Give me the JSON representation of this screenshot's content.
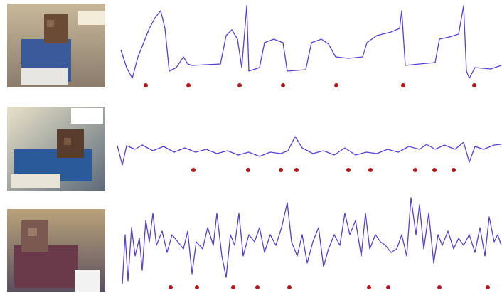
{
  "chart_data": [
    {
      "type": "line",
      "color": "#5a3fd4",
      "event_color": "#b3161b",
      "xlim": [
        0,
        540
      ],
      "ylim": [
        0,
        115
      ],
      "x": [
        5,
        13,
        21,
        29,
        37,
        45,
        53,
        61,
        67,
        73,
        83,
        93,
        99,
        105,
        125,
        145,
        153,
        161,
        169,
        175,
        182,
        185,
        200,
        207,
        220,
        233,
        239,
        265,
        273,
        287,
        297,
        307,
        325,
        345,
        351,
        365,
        385,
        397,
        400,
        405,
        425,
        447,
        453,
        467,
        480,
        487,
        491,
        495,
        503,
        525,
        540
      ],
      "values": [
        50,
        25,
        10,
        40,
        60,
        80,
        95,
        105,
        80,
        20,
        25,
        40,
        30,
        28,
        29,
        30,
        70,
        78,
        65,
        25,
        112,
        20,
        25,
        60,
        65,
        60,
        20,
        22,
        60,
        65,
        58,
        40,
        38,
        40,
        60,
        70,
        75,
        80,
        105,
        28,
        30,
        32,
        65,
        68,
        72,
        112,
        20,
        10,
        25,
        23,
        28
      ],
      "events": [
        40,
        100,
        172,
        233,
        308,
        402,
        502
      ]
    },
    {
      "type": "line",
      "color": "#5a3fd4",
      "event_color": "#b3161b",
      "xlim": [
        0,
        540
      ],
      "ylim": [
        0,
        95
      ],
      "x": [
        0,
        7,
        13,
        25,
        35,
        50,
        65,
        80,
        95,
        110,
        125,
        140,
        155,
        170,
        185,
        200,
        215,
        230,
        240,
        250,
        260,
        275,
        290,
        305,
        320,
        335,
        350,
        365,
        380,
        395,
        410,
        425,
        435,
        447,
        460,
        475,
        487,
        495,
        503,
        515,
        530,
        540
      ],
      "values": [
        40,
        13,
        40,
        35,
        41,
        33,
        39,
        31,
        37,
        31,
        35,
        29,
        33,
        27,
        31,
        25,
        31,
        29,
        33,
        53,
        37,
        29,
        33,
        27,
        37,
        27,
        31,
        29,
        35,
        31,
        39,
        35,
        42,
        35,
        41,
        35,
        45,
        17,
        39,
        35,
        41,
        42
      ],
      "events": [
        107,
        184,
        230,
        252,
        325,
        356,
        419,
        446,
        473
      ]
    },
    {
      "type": "line",
      "color": "#5a3fd4",
      "event_color": "#b3161b",
      "xlim": [
        0,
        540
      ],
      "ylim": [
        0,
        135
      ],
      "x": [
        7,
        11,
        15,
        20,
        25,
        31,
        35,
        40,
        45,
        50,
        55,
        63,
        70,
        77,
        85,
        93,
        99,
        105,
        111,
        120,
        127,
        135,
        140,
        147,
        153,
        159,
        165,
        171,
        177,
        185,
        193,
        200,
        207,
        215,
        223,
        231,
        239,
        245,
        253,
        260,
        267,
        275,
        283,
        290,
        297,
        305,
        313,
        320,
        327,
        335,
        343,
        349,
        355,
        363,
        370,
        377,
        385,
        393,
        400,
        407,
        413,
        420,
        425,
        431,
        438,
        445,
        451,
        457,
        465,
        473,
        480,
        487,
        495,
        503,
        510,
        517,
        523,
        530,
        535,
        540
      ],
      "values": [
        10,
        80,
        15,
        90,
        50,
        75,
        30,
        100,
        70,
        110,
        65,
        85,
        55,
        80,
        70,
        60,
        85,
        25,
        70,
        60,
        90,
        65,
        110,
        50,
        20,
        80,
        65,
        110,
        50,
        80,
        70,
        90,
        55,
        80,
        65,
        90,
        125,
        70,
        50,
        80,
        40,
        70,
        90,
        35,
        60,
        80,
        65,
        110,
        80,
        100,
        50,
        110,
        60,
        80,
        70,
        65,
        55,
        60,
        80,
        50,
        132,
        80,
        122,
        60,
        110,
        40,
        80,
        65,
        85,
        60,
        75,
        65,
        80,
        55,
        90,
        50,
        105,
        70,
        80,
        65
      ],
      "events": [
        75,
        112,
        163,
        197,
        242,
        354,
        381,
        453,
        521
      ]
    }
  ]
}
